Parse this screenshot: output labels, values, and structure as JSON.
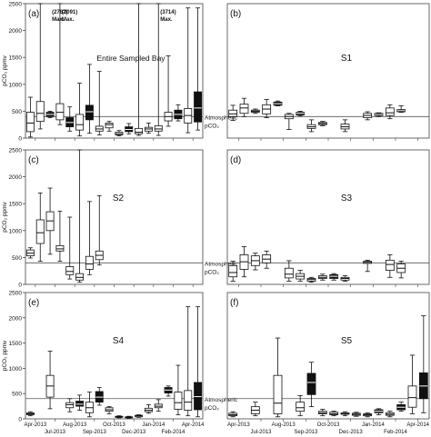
{
  "figure": {
    "shared_xticks": [
      "Apr-2013",
      "Jul-2013",
      "Aug-2013",
      "Sep-2013",
      "Oct-2013",
      "Dec-2013",
      "Jan-2014",
      "Feb-2014",
      "Apr-2014"
    ],
    "ylabel": "pCO₂ ppmv",
    "atmospheric_label_1": "Atmospheric",
    "atmospheric_label_2": "pCO₂",
    "atmospheric_level": 400
  },
  "chart_data": [
    {
      "type": "box",
      "panel": "(a)",
      "title": "Entire Sampled Bay",
      "ylim": [
        0,
        2500
      ],
      "yticks": [
        0,
        500,
        1000,
        1500,
        2000,
        2500
      ],
      "annotations": [
        {
          "text": "(2782)",
          "text2": "Max.",
          "box": 3
        },
        {
          "text": "(3091)",
          "text2": "Max.",
          "box": 4
        },
        {
          "text": "(3714)",
          "text2": "Max.",
          "box": 14
        }
      ],
      "boxes": [
        {
          "x": 1,
          "min": 20,
          "q1": 120,
          "med": 280,
          "q3": 480,
          "max": 760,
          "filled": false
        },
        {
          "x": 2,
          "min": 170,
          "q1": 310,
          "med": 460,
          "q3": 680,
          "max": 2500,
          "filled": false
        },
        {
          "x": 3,
          "min": 380,
          "q1": 400,
          "med": 440,
          "q3": 480,
          "max": 500,
          "filled": true
        },
        {
          "x": 4,
          "min": 250,
          "q1": 340,
          "med": 480,
          "q3": 640,
          "max": 2500,
          "filled": false
        },
        {
          "x": 5,
          "min": 130,
          "q1": 210,
          "med": 290,
          "q3": 380,
          "max": 580,
          "filled": true
        },
        {
          "x": 6,
          "min": 40,
          "q1": 150,
          "med": 250,
          "q3": 440,
          "max": 1020,
          "filled": false
        },
        {
          "x": 7,
          "min": 90,
          "q1": 340,
          "med": 490,
          "q3": 610,
          "max": 1370,
          "filled": true
        },
        {
          "x": 8,
          "min": 60,
          "q1": 130,
          "med": 170,
          "q3": 220,
          "max": 1240,
          "filled": false
        },
        {
          "x": 9,
          "min": 130,
          "q1": 190,
          "med": 250,
          "q3": 280,
          "max": 310,
          "filled": false
        },
        {
          "x": 10,
          "min": 40,
          "q1": 60,
          "med": 80,
          "q3": 110,
          "max": 140,
          "filled": false
        },
        {
          "x": 11,
          "min": 80,
          "q1": 120,
          "med": 160,
          "q3": 210,
          "max": 270,
          "filled": true
        },
        {
          "x": 12,
          "min": 50,
          "q1": 80,
          "med": 110,
          "q3": 180,
          "max": 2500,
          "filled": false
        },
        {
          "x": 13,
          "min": 90,
          "q1": 130,
          "med": 170,
          "q3": 200,
          "max": 280,
          "filled": false
        },
        {
          "x": 14,
          "min": 50,
          "q1": 130,
          "med": 170,
          "q3": 230,
          "max": 2500,
          "filled": false
        },
        {
          "x": 15,
          "min": 220,
          "q1": 320,
          "med": 400,
          "q3": 480,
          "max": 1530,
          "filled": false
        },
        {
          "x": 16,
          "min": 320,
          "q1": 360,
          "med": 440,
          "q3": 520,
          "max": 620,
          "filled": true
        },
        {
          "x": 17,
          "min": 100,
          "q1": 280,
          "med": 420,
          "q3": 550,
          "max": 2420,
          "filled": false
        },
        {
          "x": 18,
          "min": 150,
          "q1": 300,
          "med": 560,
          "q3": 860,
          "max": 2420,
          "filled": true
        }
      ]
    },
    {
      "type": "box",
      "panel": "(b)",
      "title": "S1",
      "ylim": [
        0,
        2500
      ],
      "yticks": [],
      "boxes": [
        {
          "x": 1,
          "min": 330,
          "q1": 400,
          "med": 450,
          "q3": 520,
          "max": 610,
          "filled": false
        },
        {
          "x": 2,
          "min": 400,
          "q1": 460,
          "med": 560,
          "q3": 630,
          "max": 740,
          "filled": false
        },
        {
          "x": 3,
          "min": 460,
          "q1": 480,
          "med": 500,
          "q3": 520,
          "max": 540,
          "filled": false
        },
        {
          "x": 4,
          "min": 380,
          "q1": 450,
          "med": 540,
          "q3": 620,
          "max": 720,
          "filled": false
        },
        {
          "x": 5,
          "min": 600,
          "q1": 610,
          "med": 640,
          "q3": 670,
          "max": 690,
          "filled": true
        },
        {
          "x": 6,
          "min": 160,
          "q1": 360,
          "med": 400,
          "q3": 440,
          "max": 460,
          "filled": false
        },
        {
          "x": 7,
          "min": 410,
          "q1": 430,
          "med": 460,
          "q3": 480,
          "max": 500,
          "filled": true
        },
        {
          "x": 8,
          "min": 120,
          "q1": 180,
          "med": 210,
          "q3": 250,
          "max": 340,
          "filled": false
        },
        {
          "x": 9,
          "min": 230,
          "q1": 250,
          "med": 270,
          "q3": 290,
          "max": 310,
          "filled": false
        },
        {
          "x": 11,
          "min": 120,
          "q1": 170,
          "med": 210,
          "q3": 260,
          "max": 340,
          "filled": false
        },
        {
          "x": 13,
          "min": 340,
          "q1": 380,
          "med": 420,
          "q3": 460,
          "max": 490,
          "filled": false
        },
        {
          "x": 14,
          "min": 400,
          "q1": 420,
          "med": 440,
          "q3": 460,
          "max": 470,
          "filled": true
        },
        {
          "x": 15,
          "min": 360,
          "q1": 420,
          "med": 470,
          "q3": 560,
          "max": 620,
          "filled": false
        },
        {
          "x": 16,
          "min": 480,
          "q1": 490,
          "med": 510,
          "q3": 530,
          "max": 600,
          "filled": true
        }
      ]
    },
    {
      "type": "box",
      "panel": "(c)",
      "title": "S2",
      "ylim": [
        0,
        2500
      ],
      "yticks": [
        0,
        500,
        1000,
        1500,
        2000,
        2500
      ],
      "boxes": [
        {
          "x": 1,
          "min": 490,
          "q1": 530,
          "med": 580,
          "q3": 640,
          "max": 680,
          "filled": false
        },
        {
          "x": 2,
          "min": 430,
          "q1": 760,
          "med": 960,
          "q3": 1200,
          "max": 1700,
          "filled": false
        },
        {
          "x": 3,
          "min": 560,
          "q1": 1000,
          "med": 1180,
          "q3": 1350,
          "max": 1790,
          "filled": false
        },
        {
          "x": 4,
          "min": 430,
          "q1": 620,
          "med": 660,
          "q3": 720,
          "max": 1360,
          "filled": false
        },
        {
          "x": 5,
          "min": 100,
          "q1": 180,
          "med": 240,
          "q3": 330,
          "max": 1250,
          "filled": false
        },
        {
          "x": 6,
          "min": 40,
          "q1": 80,
          "med": 130,
          "q3": 200,
          "max": 2500,
          "filled": false
        },
        {
          "x": 7,
          "min": 180,
          "q1": 280,
          "med": 380,
          "q3": 520,
          "max": 1540,
          "filled": false
        },
        {
          "x": 8,
          "min": 360,
          "q1": 460,
          "med": 540,
          "q3": 620,
          "max": 1650,
          "filled": false
        }
      ]
    },
    {
      "type": "box",
      "panel": "(d)",
      "title": "S3",
      "ylim": [
        0,
        2500
      ],
      "yticks": [],
      "boxes": [
        {
          "x": 1,
          "min": 60,
          "q1": 140,
          "med": 220,
          "q3": 350,
          "max": 430,
          "filled": false
        },
        {
          "x": 2,
          "min": 140,
          "q1": 280,
          "med": 420,
          "q3": 550,
          "max": 700,
          "filled": false
        },
        {
          "x": 3,
          "min": 270,
          "q1": 350,
          "med": 440,
          "q3": 530,
          "max": 580,
          "filled": false
        },
        {
          "x": 4,
          "min": 300,
          "q1": 400,
          "med": 470,
          "q3": 550,
          "max": 620,
          "filled": false
        },
        {
          "x": 6,
          "min": 60,
          "q1": 120,
          "med": 190,
          "q3": 300,
          "max": 440,
          "filled": false
        },
        {
          "x": 7,
          "min": 60,
          "q1": 100,
          "med": 150,
          "q3": 200,
          "max": 260,
          "filled": false
        },
        {
          "x": 8,
          "min": 40,
          "q1": 60,
          "med": 90,
          "q3": 110,
          "max": 130,
          "filled": false
        },
        {
          "x": 9,
          "min": 80,
          "q1": 110,
          "med": 130,
          "q3": 160,
          "max": 190,
          "filled": false
        },
        {
          "x": 10,
          "min": 80,
          "q1": 110,
          "med": 150,
          "q3": 180,
          "max": 200,
          "filled": true
        },
        {
          "x": 11,
          "min": 60,
          "q1": 80,
          "med": 110,
          "q3": 130,
          "max": 160,
          "filled": false
        },
        {
          "x": 13,
          "min": 240,
          "q1": 390,
          "med": 410,
          "q3": 430,
          "max": 450,
          "filled": false
        },
        {
          "x": 15,
          "min": 130,
          "q1": 260,
          "med": 370,
          "q3": 450,
          "max": 550,
          "filled": false
        },
        {
          "x": 16,
          "min": 120,
          "q1": 220,
          "med": 300,
          "q3": 380,
          "max": 430,
          "filled": false
        }
      ]
    },
    {
      "type": "box",
      "panel": "(e)",
      "title": "S4",
      "ylim": [
        0,
        2500
      ],
      "yticks": [
        0,
        500,
        1000,
        1500,
        2000,
        2500
      ],
      "boxes": [
        {
          "x": 1,
          "min": 60,
          "q1": 80,
          "med": 100,
          "q3": 120,
          "max": 140,
          "filled": false
        },
        {
          "x": 3,
          "min": 200,
          "q1": 430,
          "med": 650,
          "q3": 860,
          "max": 1340,
          "filled": false
        },
        {
          "x": 5,
          "min": 140,
          "q1": 220,
          "med": 280,
          "q3": 320,
          "max": 400,
          "filled": false
        },
        {
          "x": 6,
          "min": 170,
          "q1": 250,
          "med": 290,
          "q3": 350,
          "max": 470,
          "filled": true
        },
        {
          "x": 7,
          "min": 40,
          "q1": 120,
          "med": 220,
          "q3": 330,
          "max": 530,
          "filled": false
        },
        {
          "x": 8,
          "min": 270,
          "q1": 330,
          "med": 430,
          "q3": 540,
          "max": 620,
          "filled": true
        },
        {
          "x": 9,
          "min": 100,
          "q1": 150,
          "med": 180,
          "q3": 220,
          "max": 240,
          "filled": false
        },
        {
          "x": 10,
          "min": 20,
          "q1": 30,
          "med": 40,
          "q3": 50,
          "max": 60,
          "filled": false
        },
        {
          "x": 11,
          "min": 10,
          "q1": 20,
          "med": 30,
          "q3": 40,
          "max": 50,
          "filled": false
        },
        {
          "x": 12,
          "min": 30,
          "q1": 40,
          "med": 60,
          "q3": 70,
          "max": 80,
          "filled": false
        },
        {
          "x": 13,
          "min": 110,
          "q1": 140,
          "med": 170,
          "q3": 210,
          "max": 280,
          "filled": false
        },
        {
          "x": 14,
          "min": 150,
          "q1": 220,
          "med": 250,
          "q3": 290,
          "max": 380,
          "filled": false
        },
        {
          "x": 15,
          "min": 450,
          "q1": 510,
          "med": 570,
          "q3": 620,
          "max": 650,
          "filled": true
        },
        {
          "x": 16,
          "min": 80,
          "q1": 190,
          "med": 320,
          "q3": 530,
          "max": 1060,
          "filled": false
        },
        {
          "x": 17,
          "min": 60,
          "q1": 170,
          "med": 330,
          "q3": 560,
          "max": 2220,
          "filled": false
        },
        {
          "x": 18,
          "min": 40,
          "q1": 180,
          "med": 440,
          "q3": 720,
          "max": 2220,
          "filled": true
        }
      ]
    },
    {
      "type": "box",
      "panel": "(f)",
      "title": "S5",
      "ylim": [
        0,
        2500
      ],
      "yticks": [],
      "boxes": [
        {
          "x": 1,
          "min": 40,
          "q1": 60,
          "med": 80,
          "q3": 110,
          "max": 140,
          "filled": false
        },
        {
          "x": 3,
          "min": 60,
          "q1": 100,
          "med": 170,
          "q3": 240,
          "max": 330,
          "filled": false
        },
        {
          "x": 5,
          "min": 40,
          "q1": 100,
          "med": 310,
          "q3": 860,
          "max": 1600,
          "filled": false
        },
        {
          "x": 7,
          "min": 60,
          "q1": 150,
          "med": 220,
          "q3": 330,
          "max": 460,
          "filled": false
        },
        {
          "x": 8,
          "min": 240,
          "q1": 480,
          "med": 720,
          "q3": 900,
          "max": 1120,
          "filled": true
        },
        {
          "x": 9,
          "min": 60,
          "q1": 100,
          "med": 120,
          "q3": 150,
          "max": 190,
          "filled": false
        },
        {
          "x": 10,
          "min": 60,
          "q1": 80,
          "med": 100,
          "q3": 130,
          "max": 150,
          "filled": false
        },
        {
          "x": 11,
          "min": 60,
          "q1": 90,
          "med": 100,
          "q3": 120,
          "max": 140,
          "filled": false
        },
        {
          "x": 12,
          "min": 50,
          "q1": 70,
          "med": 90,
          "q3": 110,
          "max": 130,
          "filled": false
        },
        {
          "x": 13,
          "min": 40,
          "q1": 60,
          "med": 80,
          "q3": 100,
          "max": 120,
          "filled": false
        },
        {
          "x": 14,
          "min": 80,
          "q1": 120,
          "med": 150,
          "q3": 180,
          "max": 200,
          "filled": true
        },
        {
          "x": 15,
          "min": 40,
          "q1": 70,
          "med": 90,
          "q3": 120,
          "max": 150,
          "filled": false
        },
        {
          "x": 16,
          "min": 150,
          "q1": 180,
          "med": 230,
          "q3": 280,
          "max": 330,
          "filled": true
        },
        {
          "x": 17,
          "min": 100,
          "q1": 230,
          "med": 420,
          "q3": 650,
          "max": 1260,
          "filled": false
        },
        {
          "x": 18,
          "min": 120,
          "q1": 400,
          "med": 650,
          "q3": 910,
          "max": 2040,
          "filled": true
        }
      ]
    }
  ]
}
